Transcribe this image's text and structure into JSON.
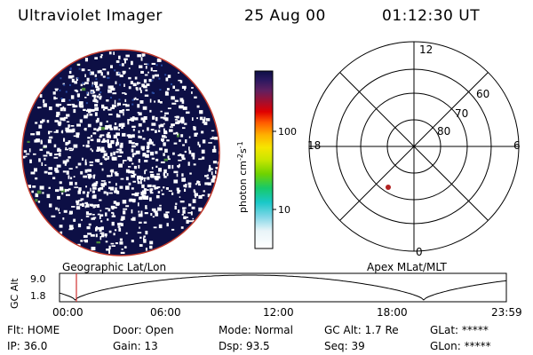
{
  "header": {
    "instrument": "Ultraviolet Imager",
    "date": "25 Aug 00",
    "time": "01:12:30 UT"
  },
  "colorbar": {
    "label_main": "photon cm",
    "label_sup1": "-2",
    "label_s": "s",
    "label_sup2": "-1",
    "ticks": [
      "100",
      "10"
    ]
  },
  "polar_plot": {
    "mlt_labels": [
      "12",
      "18",
      "6",
      "0"
    ],
    "mlat_labels": [
      "60",
      "70",
      "80"
    ]
  },
  "timeline": {
    "left_caption": "Geographic Lat/Lon",
    "right_caption": "Apex MLat/MLT",
    "ylabel": "GC Alt",
    "ymax_label": "9.0",
    "ymin_label": "1.8",
    "time_ticks": [
      "00:00",
      "06:00",
      "12:00",
      "18:00",
      "23:59"
    ]
  },
  "status": {
    "flt": "Flt: HOME",
    "ip": "IP: 36.0",
    "door": "Door: Open",
    "gain": "Gain: 13",
    "mode": "Mode: Normal",
    "dsp": "Dsp:    93.5",
    "gc_alt": "GC Alt: 1.7 Re",
    "seq": "Seq: 39",
    "glat": "GLat: *****",
    "glon": "GLon: *****"
  },
  "colors": {
    "disk_fill": "#0d0f45",
    "disk_outline": "#c0392b",
    "marker": "#b22222",
    "time_cursor": "#d03030"
  }
}
